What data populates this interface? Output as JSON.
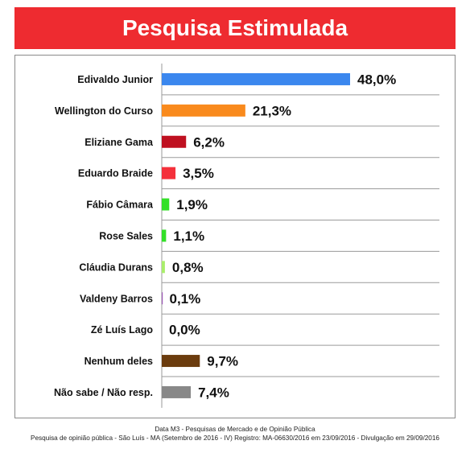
{
  "header": {
    "title": "Pesquisa Estimulada"
  },
  "chart_data": {
    "type": "bar",
    "orientation": "horizontal",
    "title": "Pesquisa Estimulada",
    "categories": [
      "Edivaldo Junior",
      "Wellington do Curso",
      "Eliziane Gama",
      "Eduardo Braide",
      "Fábio Câmara",
      "Rose Sales",
      "Cláudia Durans",
      "Valdeny Barros",
      "Zé Luís Lago",
      "Nenhum deles",
      "Não sabe / Não resp."
    ],
    "values": [
      48.0,
      21.3,
      6.2,
      3.5,
      1.9,
      1.1,
      0.8,
      0.1,
      0.0,
      9.7,
      7.4
    ],
    "value_labels": [
      "48,0%",
      "21,3%",
      "6,2%",
      "3,5%",
      "1,9%",
      "1,1%",
      "0,8%",
      "0,1%",
      "0,0%",
      "9,7%",
      "7,4%"
    ],
    "colors": [
      "#3b87ee",
      "#f98a1d",
      "#bf1020",
      "#f4303b",
      "#33e028",
      "#33e028",
      "#a9ee6a",
      "#9b59b6",
      "#ffffff",
      "#6b3c0e",
      "#888888"
    ],
    "xlim": [
      0,
      48
    ],
    "grid": true,
    "legend": "none"
  },
  "footer": {
    "line1": "Data M3 - Pesquisas de Mercado e de Opinião Pública",
    "line2": "Pesquisa de opinião pública - São Luís - MA (Setembro de 2016 - IV) Registro: MA-06630/2016 em 23/09/2016 - Divulgação em 29/09/2016"
  }
}
